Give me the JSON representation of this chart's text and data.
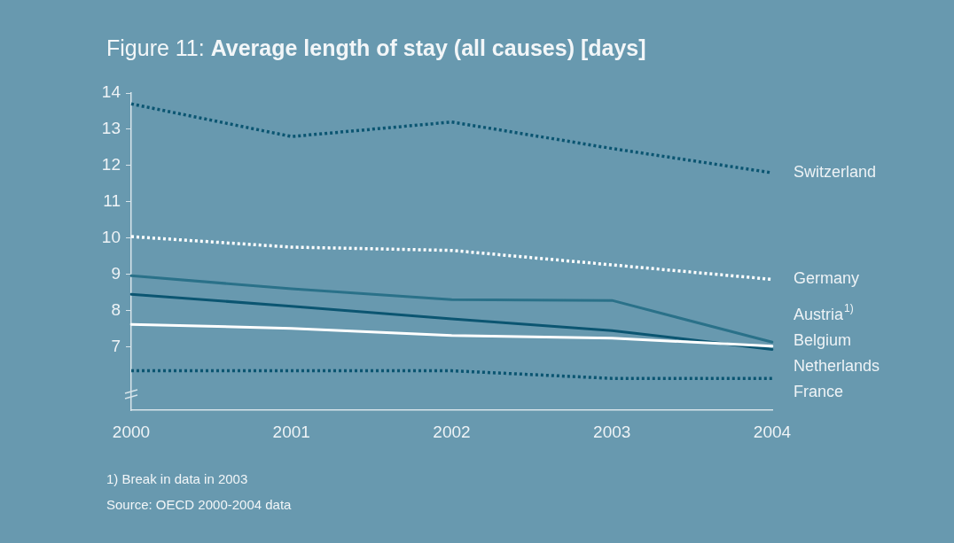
{
  "chart_data": {
    "type": "line",
    "title": "Figure 11: Average length of stay (all causes) [days]",
    "categories": [
      "2000",
      "2001",
      "2002",
      "2003",
      "2004"
    ],
    "ylim": [
      5.25,
      14
    ],
    "yticks": [
      7,
      8,
      9,
      10,
      11,
      12,
      13,
      14
    ],
    "series": [
      {
        "name": "Switzerland",
        "color": "#0b5571",
        "line_style": "dotted",
        "values": [
          13.7,
          12.8,
          13.2,
          12.47,
          11.8
        ]
      },
      {
        "name": "Germany",
        "color": "#ffffff",
        "line_style": "dotted",
        "values": [
          10.04,
          9.75,
          9.66,
          9.26,
          8.86
        ]
      },
      {
        "name": "Austria$^{1)}$",
        "color": "#2a7189",
        "line_style": "solid",
        "values": [
          8.96,
          8.6,
          8.3,
          8.28,
          7.13
        ]
      },
      {
        "name": "Belgium",
        "color": "#ffffff",
        "line_style": "solid",
        "values": [
          7.62,
          7.51,
          7.31,
          7.24,
          7.02
        ]
      },
      {
        "name": "Netherlands",
        "color": "#0b5571",
        "line_style": "solid",
        "values": [
          8.45,
          8.12,
          7.77,
          7.45,
          6.93
        ]
      },
      {
        "name": "France",
        "color": "#0b5571",
        "line_style": "dotted",
        "values": [
          6.34,
          6.34,
          6.34,
          6.13,
          6.13
        ]
      }
    ],
    "annotations": [
      "1) Break in data in 2003",
      "Source: OECD 2000-2004 data"
    ]
  }
}
